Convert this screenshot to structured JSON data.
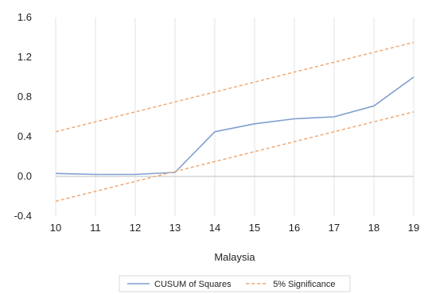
{
  "chart_data": {
    "type": "line",
    "title": "",
    "xlabel": "Malaysia",
    "ylabel": "",
    "x": [
      10,
      11,
      12,
      13,
      14,
      15,
      16,
      17,
      18,
      19
    ],
    "xlim": [
      10,
      19
    ],
    "ylim": [
      -0.4,
      1.6
    ],
    "yticks": [
      -0.4,
      0.0,
      0.4,
      0.8,
      1.2,
      1.6
    ],
    "ytick_labels": [
      "-0.4",
      "0.0",
      "0.4",
      "0.8",
      "1.2",
      "1.6"
    ],
    "xtick_labels": [
      "10",
      "11",
      "12",
      "13",
      "14",
      "15",
      "16",
      "17",
      "18",
      "19"
    ],
    "grid": "vertical",
    "legend": "bottom",
    "series": [
      {
        "name": "CUSUM of Squares",
        "style": "solid",
        "color": "#7f9fcf",
        "values": [
          0.03,
          0.02,
          0.02,
          0.04,
          0.45,
          0.53,
          0.58,
          0.6,
          0.71,
          1.0
        ]
      },
      {
        "name": "5% Significance",
        "style": "dashed",
        "color": "#f0a36a",
        "values": [
          0.45,
          0.55,
          0.65,
          0.75,
          0.85,
          0.95,
          1.05,
          1.15,
          1.25,
          1.35
        ]
      },
      {
        "name": "",
        "style": "dashed",
        "color": "#f0a36a",
        "values": [
          -0.25,
          -0.15,
          -0.05,
          0.05,
          0.15,
          0.25,
          0.35,
          0.45,
          0.55,
          0.65
        ]
      }
    ]
  }
}
